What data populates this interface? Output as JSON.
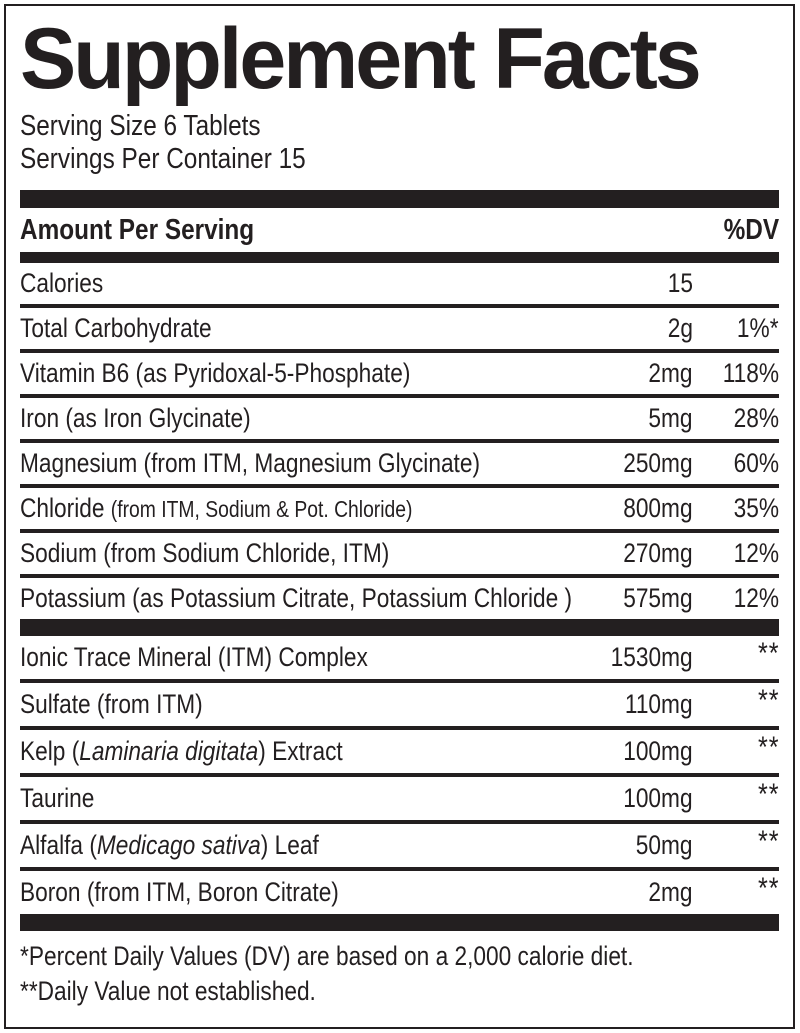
{
  "colors": {
    "ink": "#231f20",
    "background": "#ffffff"
  },
  "label": {
    "title": "Supplement Facts",
    "serving_size": "Serving Size 6 Tablets",
    "servings_per_container": "Servings Per Container 15",
    "header": {
      "amount_label": "Amount Per Serving",
      "dv_label": "%DV"
    },
    "groups": [
      {
        "rows": [
          {
            "name": [
              {
                "text": "Calories"
              }
            ],
            "amount": "15",
            "dv": ""
          },
          {
            "name": [
              {
                "text": "Total Carbohydrate"
              }
            ],
            "amount": "2g",
            "dv": "1%*"
          },
          {
            "name": [
              {
                "text": "Vitamin B6 (as Pyridoxal-5-Phosphate)"
              }
            ],
            "amount": "2mg",
            "dv": "118%"
          },
          {
            "name": [
              {
                "text": "Iron (as Iron Glycinate)"
              }
            ],
            "amount": "5mg",
            "dv": "28%"
          },
          {
            "name": [
              {
                "text": "Magnesium (from ITM, Magnesium Glycinate)"
              }
            ],
            "amount": "250mg",
            "dv": "60%"
          },
          {
            "name": [
              {
                "text": "Chloride "
              },
              {
                "text": "(from ITM, Sodium & Pot. Chloride)",
                "style": "small"
              }
            ],
            "amount": "800mg",
            "dv": "35%"
          },
          {
            "name": [
              {
                "text": "Sodium (from Sodium Chloride, ITM)"
              }
            ],
            "amount": "270mg",
            "dv": "12%"
          },
          {
            "name": [
              {
                "text": "Potassium (as Potassium Citrate, Potassium Chloride )"
              }
            ],
            "amount": "575mg",
            "dv": "12%"
          }
        ]
      },
      {
        "rows": [
          {
            "name": [
              {
                "text": "Ionic Trace Mineral (ITM) Complex"
              }
            ],
            "amount": "1530mg",
            "dv": "**"
          },
          {
            "name": [
              {
                "text": "Sulfate (from ITM)"
              }
            ],
            "amount": "110mg",
            "dv": "**"
          },
          {
            "name": [
              {
                "text": "Kelp ("
              },
              {
                "text": "Laminaria digitata",
                "style": "italic"
              },
              {
                "text": ") Extract"
              }
            ],
            "amount": "100mg",
            "dv": "**"
          },
          {
            "name": [
              {
                "text": "Taurine"
              }
            ],
            "amount": "100mg",
            "dv": "**"
          },
          {
            "name": [
              {
                "text": "Alfalfa ("
              },
              {
                "text": "Medicago sativa",
                "style": "italic"
              },
              {
                "text": ") Leaf"
              }
            ],
            "amount": "50mg",
            "dv": "**"
          },
          {
            "name": [
              {
                "text": "Boron (from ITM, Boron Citrate)"
              }
            ],
            "amount": "2mg",
            "dv": "**"
          }
        ]
      }
    ],
    "footnotes": [
      "*Percent Daily Values (DV) are based on a 2,000 calorie diet.",
      "**Daily Value not established."
    ]
  }
}
